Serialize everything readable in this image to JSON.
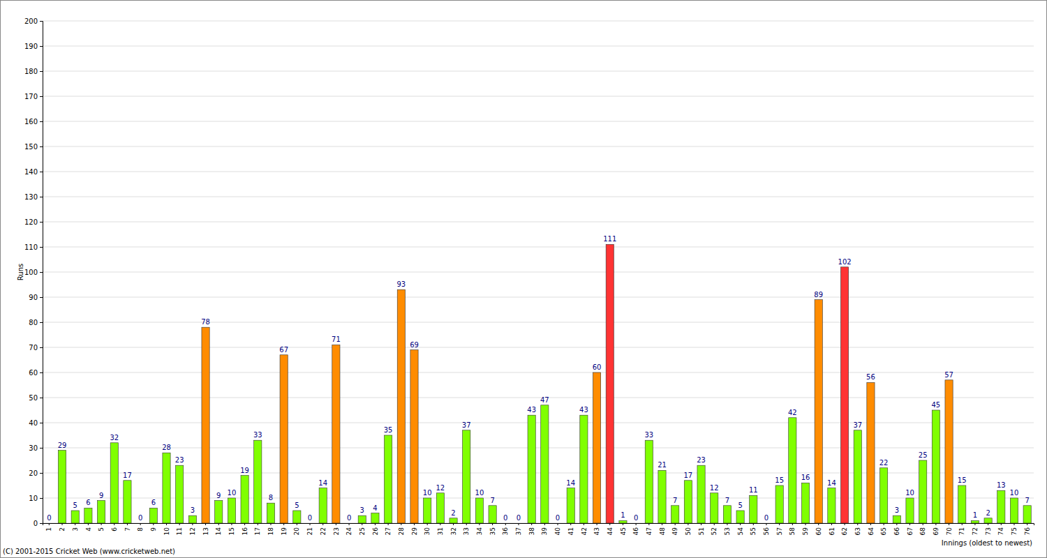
{
  "chart_data": {
    "type": "bar",
    "x_label": "Innings (oldest to newest)",
    "y_label": "Runs",
    "annotations": [
      "(C) 2001-2015 Cricket Web (www.cricketweb.net)"
    ],
    "categories": [
      "1",
      "2",
      "3",
      "4",
      "5",
      "6",
      "7",
      "8",
      "9",
      "10",
      "11",
      "12",
      "13",
      "14",
      "15",
      "16",
      "17",
      "18",
      "19",
      "20",
      "21",
      "22",
      "23",
      "24",
      "25",
      "26",
      "27",
      "28",
      "29",
      "30",
      "31",
      "32",
      "33",
      "34",
      "35",
      "36",
      "37",
      "38",
      "39",
      "40",
      "41",
      "42",
      "43",
      "44",
      "45",
      "46",
      "47",
      "48",
      "49",
      "50",
      "51",
      "52",
      "53",
      "54",
      "55",
      "56",
      "57",
      "58",
      "59",
      "60",
      "61",
      "62",
      "63",
      "64",
      "65",
      "66",
      "67",
      "68",
      "69",
      "70",
      "71",
      "72",
      "73",
      "74",
      "75",
      "76"
    ],
    "values": [
      0,
      29,
      5,
      6,
      9,
      32,
      17,
      0,
      6,
      28,
      23,
      3,
      78,
      9,
      10,
      19,
      33,
      8,
      67,
      5,
      0,
      14,
      71,
      0,
      3,
      4,
      35,
      93,
      69,
      10,
      12,
      2,
      37,
      10,
      7,
      0,
      0,
      43,
      47,
      0,
      14,
      43,
      60,
      111,
      1,
      0,
      33,
      21,
      7,
      17,
      23,
      12,
      7,
      5,
      11,
      0,
      15,
      42,
      16,
      89,
      14,
      102,
      37,
      56,
      22,
      3,
      10,
      25,
      45,
      57,
      15,
      1,
      2,
      13,
      10,
      7
    ],
    "colors": [
      "#80ff00",
      "#80ff00",
      "#80ff00",
      "#80ff00",
      "#80ff00",
      "#80ff00",
      "#80ff00",
      "#80ff00",
      "#80ff00",
      "#80ff00",
      "#80ff00",
      "#80ff00",
      "#ff8c00",
      "#80ff00",
      "#80ff00",
      "#80ff00",
      "#80ff00",
      "#80ff00",
      "#ff8c00",
      "#80ff00",
      "#80ff00",
      "#80ff00",
      "#ff8c00",
      "#80ff00",
      "#80ff00",
      "#80ff00",
      "#80ff00",
      "#ff8c00",
      "#ff8c00",
      "#80ff00",
      "#80ff00",
      "#80ff00",
      "#80ff00",
      "#80ff00",
      "#80ff00",
      "#80ff00",
      "#80ff00",
      "#80ff00",
      "#80ff00",
      "#80ff00",
      "#80ff00",
      "#80ff00",
      "#ff8c00",
      "#ff3333",
      "#80ff00",
      "#80ff00",
      "#80ff00",
      "#80ff00",
      "#80ff00",
      "#80ff00",
      "#80ff00",
      "#80ff00",
      "#80ff00",
      "#80ff00",
      "#80ff00",
      "#80ff00",
      "#80ff00",
      "#80ff00",
      "#80ff00",
      "#ff8c00",
      "#80ff00",
      "#ff3333",
      "#80ff00",
      "#ff8c00",
      "#80ff00",
      "#80ff00",
      "#80ff00",
      "#80ff00",
      "#80ff00",
      "#ff8c00",
      "#80ff00",
      "#80ff00",
      "#80ff00",
      "#80ff00",
      "#80ff00",
      "#80ff00"
    ],
    "ylim": [
      0,
      200
    ],
    "yticks": [
      0,
      10,
      20,
      30,
      40,
      50,
      60,
      70,
      80,
      90,
      100,
      110,
      120,
      130,
      140,
      150,
      160,
      170,
      180,
      190,
      200
    ],
    "grid": true,
    "data_labels": true
  }
}
